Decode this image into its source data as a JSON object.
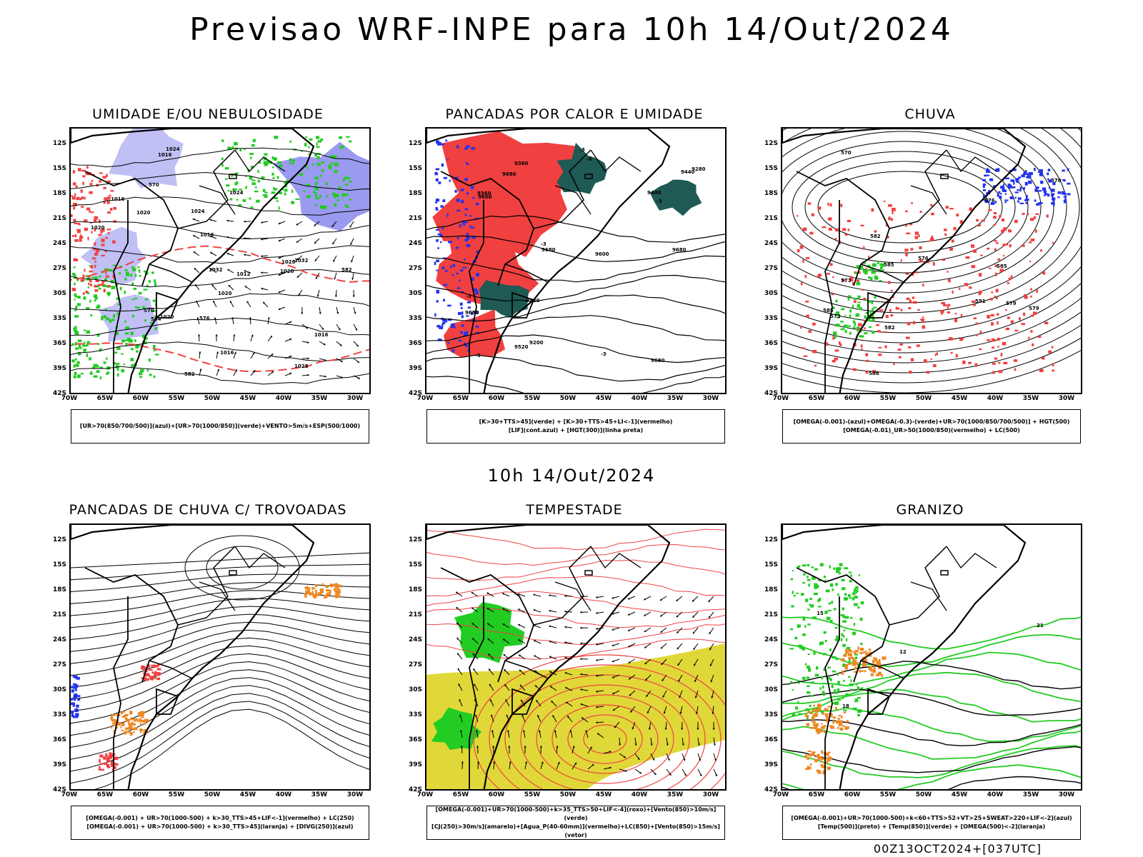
{
  "title": "Previsao WRF-INPE  para 10h 14/Out/2024",
  "subtitle": "10h 14/Out/2024",
  "timestamp": "00Z13OCT2024+[037UTC]",
  "lat_labels": [
    "12S",
    "15S",
    "18S",
    "21S",
    "24S",
    "27S",
    "30S",
    "33S",
    "36S",
    "39S",
    "42S"
  ],
  "lon_labels": [
    "70W",
    "65W",
    "60W",
    "55W",
    "50W",
    "45W",
    "40W",
    "35W",
    "30W"
  ],
  "colors": {
    "blue_humidity": "#9a9af0",
    "light_blue": "#c0c0f5",
    "green_contour": "#22cc22",
    "red_fill": "#f04040",
    "dark_teal": "#1f5a55",
    "orange": "#ee8822",
    "yellow": "#e0d838",
    "red_contour": "#ee4444",
    "blue_contour": "#2233ee"
  },
  "panels": [
    {
      "title": "UMIDADE E/OU NEBULOSIDADE",
      "legend": [
        "[UR>70(850/700/500)](azul)+[UR>70(1000/850)](verde)+VENTO>5m/s+ESP(500/1000)"
      ],
      "contour_labels": [
        "1020",
        "1016",
        "1016",
        "1016",
        "1020",
        "1024",
        "1020",
        "1012",
        "1016",
        "1020",
        "1024",
        "1028",
        "1028",
        "1032",
        "1020",
        "1016",
        "1024",
        "1032",
        "570",
        "576",
        "582",
        "564",
        "570",
        "582"
      ]
    },
    {
      "title": "PANCADAS POR CALOR E UMIDADE",
      "legend": [
        "[K>30+TTS>45](verde) + [K>30+TTS>45+LI<-1](vermelho)",
        "[LIF](cont.azul) + [HGT(300)](linha preta)"
      ],
      "contour_labels": [
        "9680",
        "9680",
        "9680",
        "9680",
        "9680",
        "9600",
        "9600",
        "9520",
        "9520",
        "9440",
        "9440",
        "9360",
        "9360",
        "9280",
        "9200",
        "-6",
        "-3",
        "-3",
        "-3",
        "-3",
        "-3",
        "-3"
      ]
    },
    {
      "title": "CHUVA",
      "legend": [
        "[OMEGA(-0.001)-(azul)+OMEGA(-0.3)-(verde)+UR>70(1000/850/700/500)] + HGT(500)",
        "[OMEGA(-0.01)_UR>50(1000/850)(vermelho) + LC(500)"
      ],
      "contour_labels": [
        "588",
        "591",
        "585",
        "582",
        "579",
        "576",
        "573",
        "570",
        "585",
        "585",
        "582",
        "579",
        "576",
        "573",
        "570"
      ]
    },
    {
      "title": "PANCADAS DE CHUVA C/ TROVOADAS",
      "legend": [
        "[OMEGA(-0.001) + UR>70(1000-500) + k>30_TTS>45+LIF<-1](vermelho) + LC(250)",
        "[OMEGA(-0.001) + UR>70(1000-500) + k>30_TTS>45](laranja) + [DIVG(250)](azul)"
      ],
      "contour_labels": []
    },
    {
      "title": "TEMPESTADE",
      "legend": [
        "[OMEGA(-0.001)+UR>70(1000-500)+k>35_TTS>50+LIF<-4](roxo)+[Vento(850)>10m/s](verde)",
        "[CJ(250)>30m/s](amarelo)+[Agua_P(40-60mm)](vermelho)+LC(850)+[Vento(850)>15m/s](vetor)"
      ],
      "contour_labels": []
    },
    {
      "title": "GRANIZO",
      "legend": [
        "[OMEGA(-0.001)+UR>70(1000-500)+k<60+TTS>52+VT>25+SWEAT>220+LIF<-2](azul)",
        "[Temp(500)](preto) + [Temp(850)](verde) + [OMEGA(500)<-2](laranja)"
      ],
      "contour_labels": [
        "12",
        "15",
        "18",
        "21"
      ]
    }
  ]
}
